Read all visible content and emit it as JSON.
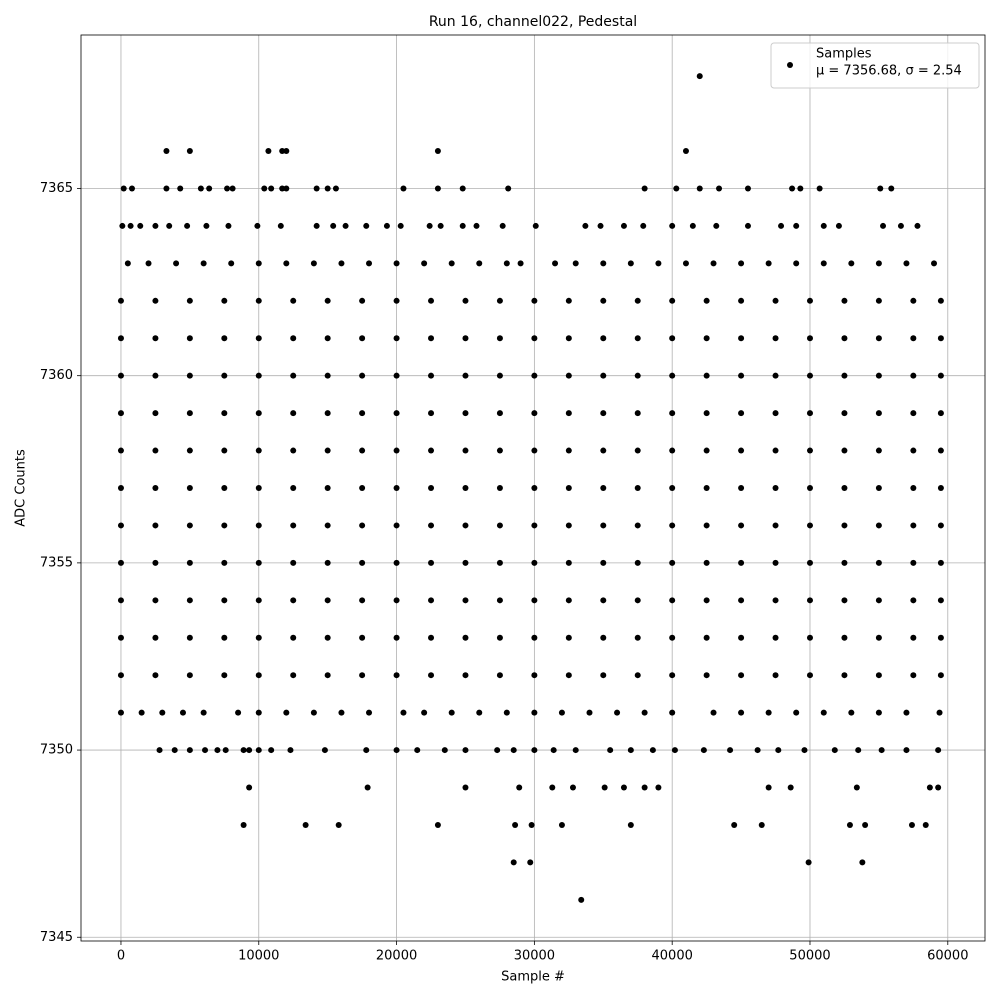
{
  "chart_data": {
    "type": "scatter",
    "title": "Run 16, channel022, Pedestal",
    "x_label": "Sample #",
    "y_label": "ADC Counts",
    "xlim": [
      -2900,
      62700
    ],
    "ylim": [
      7344.9,
      7369.1
    ],
    "xticks": [
      0,
      10000,
      20000,
      30000,
      40000,
      50000,
      60000
    ],
    "yticks": [
      7345,
      7350,
      7355,
      7360,
      7365
    ],
    "grid": true,
    "legend": "upper right",
    "legend_note": "μ = 7356.68, σ = 2.54",
    "series": [
      {
        "name": "Samples",
        "color": "#000000",
        "x": [
          0,
          2500,
          5000,
          7500,
          10000,
          12500,
          15000,
          17500,
          20000,
          22500,
          25000,
          27500,
          30000,
          32500,
          35000,
          37500,
          40000,
          42500,
          45000,
          47500,
          50000,
          52500,
          55000,
          57500,
          59500,
          0,
          2500,
          5000,
          7500,
          10000,
          12500,
          15000,
          17500,
          20000,
          22500,
          25000,
          27500,
          30000,
          32500,
          35000,
          37500,
          40000,
          42500,
          45000,
          47500,
          50000,
          52500,
          55000,
          57500,
          59500,
          0,
          2500,
          5000,
          7500,
          10000,
          12500,
          15000,
          17500,
          20000,
          22500,
          25000,
          27500,
          30000,
          32500,
          35000,
          37500,
          40000,
          42500,
          45000,
          47500,
          50000,
          52500,
          55000,
          57500,
          59500,
          0,
          2500,
          5000,
          7500,
          10000,
          12500,
          15000,
          17500,
          20000,
          22500,
          25000,
          27500,
          30000,
          32500,
          35000,
          37500,
          40000,
          42500,
          45000,
          47500,
          50000,
          52500,
          55000,
          57500,
          59500,
          0,
          2500,
          5000,
          7500,
          10000,
          12500,
          15000,
          17500,
          20000,
          22500,
          25000,
          27500,
          30000,
          32500,
          35000,
          37500,
          40000,
          42500,
          45000,
          47500,
          50000,
          52500,
          55000,
          57500,
          59500,
          0,
          2500,
          5000,
          7500,
          10000,
          12500,
          15000,
          17500,
          20000,
          22500,
          25000,
          27500,
          30000,
          32500,
          35000,
          37500,
          40000,
          42500,
          45000,
          47500,
          50000,
          52500,
          55000,
          57500,
          59500,
          0,
          2500,
          5000,
          7500,
          10000,
          12500,
          15000,
          17500,
          20000,
          22500,
          25000,
          27500,
          30000,
          32500,
          35000,
          37500,
          40000,
          42500,
          45000,
          47500,
          50000,
          52500,
          55000,
          57500,
          59500,
          0,
          2500,
          5000,
          7500,
          10000,
          12500,
          15000,
          17500,
          20000,
          22500,
          25000,
          27500,
          30000,
          32500,
          35000,
          37500,
          40000,
          42500,
          45000,
          47500,
          50000,
          52500,
          55000,
          57500,
          59500,
          0,
          2500,
          5000,
          7500,
          10000,
          12500,
          15000,
          17500,
          20000,
          22500,
          25000,
          27500,
          30000,
          32500,
          35000,
          37500,
          40000,
          42500,
          45000,
          47500,
          50000,
          52500,
          55000,
          57500,
          59500,
          0,
          2500,
          5000,
          7500,
          10000,
          12500,
          15000,
          17500,
          20000,
          22500,
          25000,
          27500,
          30000,
          32500,
          35000,
          37500,
          40000,
          42500,
          45000,
          47500,
          50000,
          52500,
          55000,
          57500,
          59500,
          0,
          2500,
          5000,
          7500,
          10000,
          12500,
          15000,
          17500,
          20000,
          22500,
          25000,
          27500,
          30000,
          32500,
          35000,
          37500,
          40000,
          42500,
          45000,
          47500,
          50000,
          52500,
          55000,
          57500,
          59500,
          0,
          1500,
          3000,
          4500,
          6000,
          8500,
          10000,
          12000,
          14000,
          16000,
          18000,
          20500,
          22000,
          24000,
          26000,
          28000,
          30000,
          32000,
          34000,
          36000,
          38000,
          40000,
          43000,
          45000,
          47000,
          49000,
          51000,
          53000,
          55000,
          57000,
          59400,
          500,
          2000,
          4000,
          6000,
          8000,
          10000,
          12000,
          14000,
          16000,
          18000,
          20000,
          22000,
          24000,
          26000,
          28000,
          29000,
          31500,
          33000,
          35000,
          37000,
          39000,
          41000,
          43000,
          45000,
          47000,
          49000,
          51000,
          53000,
          55000,
          57000,
          59000,
          100,
          700,
          1400,
          2500,
          3500,
          4800,
          6200,
          7800,
          9900,
          11600,
          14200,
          15400,
          16300,
          17800,
          19300,
          20300,
          22400,
          23200,
          24800,
          25800,
          27700,
          30100,
          33700,
          34800,
          36500,
          37900,
          40000,
          41500,
          43200,
          45500,
          47900,
          49000,
          51000,
          52100,
          55300,
          56600,
          57800,
          200,
          800,
          3300,
          4300,
          5800,
          6400,
          7700,
          8100,
          10400,
          10900,
          11700,
          12000,
          14200,
          15000,
          15600,
          20500,
          23000,
          24800,
          28100,
          38000,
          40300,
          42000,
          43400,
          45500,
          48700,
          49300,
          50700,
          55100,
          55900,
          3300,
          5000,
          10700,
          11700,
          12000,
          23000,
          41000,
          42000,
          2800,
          3900,
          5000,
          6100,
          7000,
          7600,
          8900,
          9300,
          10000,
          10900,
          12300,
          14800,
          17800,
          20000,
          21500,
          23500,
          25000,
          27300,
          28500,
          30000,
          31400,
          33000,
          35500,
          37000,
          38600,
          40200,
          42300,
          44200,
          46200,
          47700,
          49600,
          51800,
          53500,
          55200,
          57000,
          59300,
          9300,
          17900,
          25000,
          28900,
          31300,
          32800,
          35100,
          36500,
          38000,
          39000,
          47000,
          48600,
          53400,
          58700,
          59300,
          8900,
          13400,
          15800,
          23000,
          28600,
          29800,
          32000,
          37000,
          44500,
          46500,
          52900,
          54000,
          57400,
          58400,
          28500,
          29700,
          49900,
          53800,
          33400
        ],
        "y": [
          7352,
          7352,
          7352,
          7352,
          7352,
          7352,
          7352,
          7352,
          7352,
          7352,
          7352,
          7352,
          7352,
          7352,
          7352,
          7352,
          7352,
          7352,
          7352,
          7352,
          7352,
          7352,
          7352,
          7352,
          7352,
          7353,
          7353,
          7353,
          7353,
          7353,
          7353,
          7353,
          7353,
          7353,
          7353,
          7353,
          7353,
          7353,
          7353,
          7353,
          7353,
          7353,
          7353,
          7353,
          7353,
          7353,
          7353,
          7353,
          7353,
          7353,
          7354,
          7354,
          7354,
          7354,
          7354,
          7354,
          7354,
          7354,
          7354,
          7354,
          7354,
          7354,
          7354,
          7354,
          7354,
          7354,
          7354,
          7354,
          7354,
          7354,
          7354,
          7354,
          7354,
          7354,
          7354,
          7355,
          7355,
          7355,
          7355,
          7355,
          7355,
          7355,
          7355,
          7355,
          7355,
          7355,
          7355,
          7355,
          7355,
          7355,
          7355,
          7355,
          7355,
          7355,
          7355,
          7355,
          7355,
          7355,
          7355,
          7355,
          7356,
          7356,
          7356,
          7356,
          7356,
          7356,
          7356,
          7356,
          7356,
          7356,
          7356,
          7356,
          7356,
          7356,
          7356,
          7356,
          7356,
          7356,
          7356,
          7356,
          7356,
          7356,
          7356,
          7356,
          7356,
          7357,
          7357,
          7357,
          7357,
          7357,
          7357,
          7357,
          7357,
          7357,
          7357,
          7357,
          7357,
          7357,
          7357,
          7357,
          7357,
          7357,
          7357,
          7357,
          7357,
          7357,
          7357,
          7357,
          7357,
          7357,
          7358,
          7358,
          7358,
          7358,
          7358,
          7358,
          7358,
          7358,
          7358,
          7358,
          7358,
          7358,
          7358,
          7358,
          7358,
          7358,
          7358,
          7358,
          7358,
          7358,
          7358,
          7358,
          7358,
          7358,
          7358,
          7359,
          7359,
          7359,
          7359,
          7359,
          7359,
          7359,
          7359,
          7359,
          7359,
          7359,
          7359,
          7359,
          7359,
          7359,
          7359,
          7359,
          7359,
          7359,
          7359,
          7359,
          7359,
          7359,
          7359,
          7359,
          7360,
          7360,
          7360,
          7360,
          7360,
          7360,
          7360,
          7360,
          7360,
          7360,
          7360,
          7360,
          7360,
          7360,
          7360,
          7360,
          7360,
          7360,
          7360,
          7360,
          7360,
          7360,
          7360,
          7360,
          7360,
          7361,
          7361,
          7361,
          7361,
          7361,
          7361,
          7361,
          7361,
          7361,
          7361,
          7361,
          7361,
          7361,
          7361,
          7361,
          7361,
          7361,
          7361,
          7361,
          7361,
          7361,
          7361,
          7361,
          7361,
          7361,
          7362,
          7362,
          7362,
          7362,
          7362,
          7362,
          7362,
          7362,
          7362,
          7362,
          7362,
          7362,
          7362,
          7362,
          7362,
          7362,
          7362,
          7362,
          7362,
          7362,
          7362,
          7362,
          7362,
          7362,
          7362,
          7351,
          7351,
          7351,
          7351,
          7351,
          7351,
          7351,
          7351,
          7351,
          7351,
          7351,
          7351,
          7351,
          7351,
          7351,
          7351,
          7351,
          7351,
          7351,
          7351,
          7351,
          7351,
          7351,
          7351,
          7351,
          7351,
          7351,
          7351,
          7351,
          7351,
          7351,
          7363,
          7363,
          7363,
          7363,
          7363,
          7363,
          7363,
          7363,
          7363,
          7363,
          7363,
          7363,
          7363,
          7363,
          7363,
          7363,
          7363,
          7363,
          7363,
          7363,
          7363,
          7363,
          7363,
          7363,
          7363,
          7363,
          7363,
          7363,
          7363,
          7363,
          7363,
          7364,
          7364,
          7364,
          7364,
          7364,
          7364,
          7364,
          7364,
          7364,
          7364,
          7364,
          7364,
          7364,
          7364,
          7364,
          7364,
          7364,
          7364,
          7364,
          7364,
          7364,
          7364,
          7364,
          7364,
          7364,
          7364,
          7364,
          7364,
          7364,
          7364,
          7364,
          7364,
          7364,
          7364,
          7364,
          7364,
          7364,
          7365,
          7365,
          7365,
          7365,
          7365,
          7365,
          7365,
          7365,
          7365,
          7365,
          7365,
          7365,
          7365,
          7365,
          7365,
          7365,
          7365,
          7365,
          7365,
          7365,
          7365,
          7365,
          7365,
          7365,
          7365,
          7365,
          7365,
          7365,
          7365,
          7366,
          7366,
          7366,
          7366,
          7366,
          7366,
          7366,
          7368,
          7350,
          7350,
          7350,
          7350,
          7350,
          7350,
          7350,
          7350,
          7350,
          7350,
          7350,
          7350,
          7350,
          7350,
          7350,
          7350,
          7350,
          7350,
          7350,
          7350,
          7350,
          7350,
          7350,
          7350,
          7350,
          7350,
          7350,
          7350,
          7350,
          7350,
          7350,
          7350,
          7350,
          7350,
          7350,
          7350,
          7349,
          7349,
          7349,
          7349,
          7349,
          7349,
          7349,
          7349,
          7349,
          7349,
          7349,
          7349,
          7349,
          7349,
          7349,
          7348,
          7348,
          7348,
          7348,
          7348,
          7348,
          7348,
          7348,
          7348,
          7348,
          7348,
          7348,
          7348,
          7348,
          7347,
          7347,
          7347,
          7347,
          7346
        ]
      }
    ]
  }
}
